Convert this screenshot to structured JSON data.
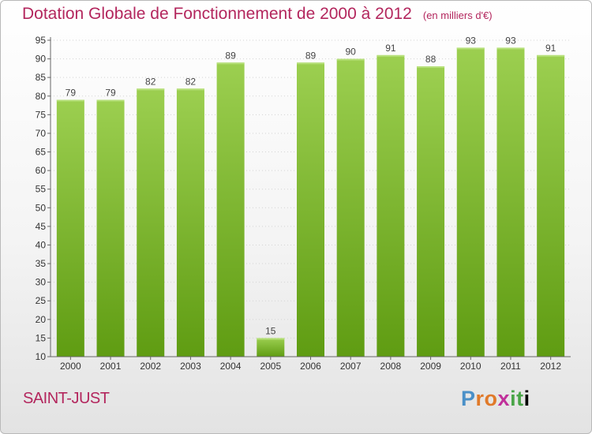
{
  "header": {
    "title": "Dotation Globale de Fonctionnement de 2000 à 2012",
    "unit": "(en milliers d'€)"
  },
  "footer": {
    "commune": "SAINT-JUST",
    "logo_text": "Proxiti"
  },
  "colors": {
    "title": "#b3265d",
    "bar_top": "#9ccf50",
    "bar_bottom": "#5f9c12"
  },
  "chart_data": {
    "type": "bar",
    "title": "Dotation Globale de Fonctionnement de 2000 à 2012",
    "subtitle": "(en milliers d'€)",
    "xlabel": "",
    "ylabel": "",
    "categories": [
      "2000",
      "2001",
      "2002",
      "2003",
      "2004",
      "2005",
      "2006",
      "2007",
      "2008",
      "2009",
      "2010",
      "2011",
      "2012"
    ],
    "values": [
      79,
      79,
      82,
      82,
      89,
      15,
      89,
      90,
      91,
      88,
      93,
      93,
      91
    ],
    "ylim": [
      10,
      95
    ],
    "yticks": [
      10,
      15,
      20,
      25,
      30,
      35,
      40,
      45,
      50,
      55,
      60,
      65,
      70,
      75,
      80,
      85,
      90,
      95
    ],
    "grid": true,
    "legend": "none"
  }
}
